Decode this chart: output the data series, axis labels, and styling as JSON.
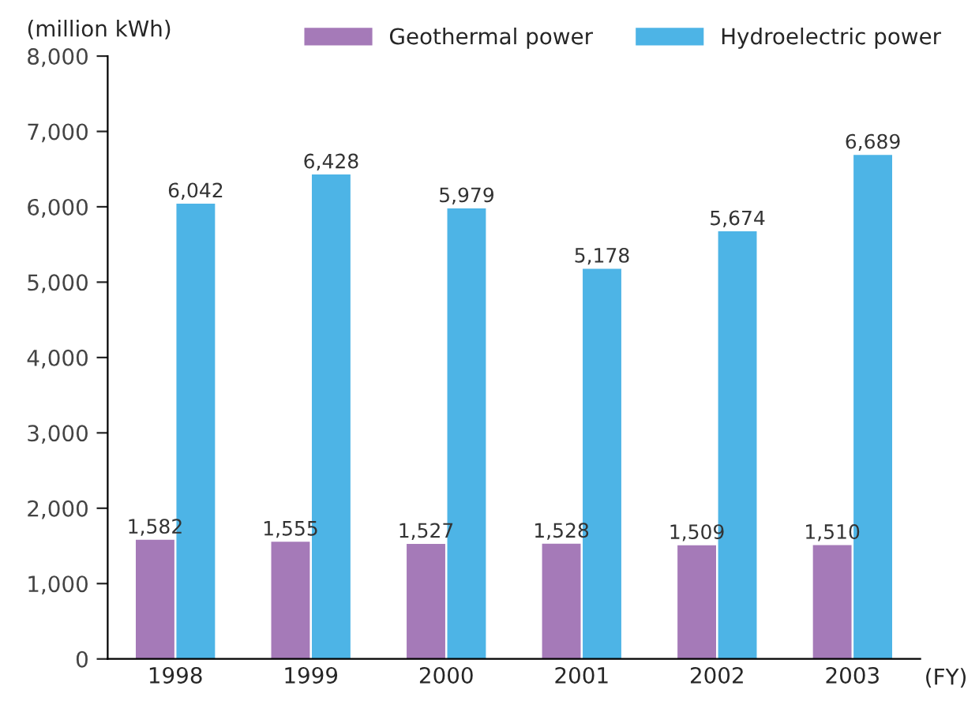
{
  "chart_data": {
    "type": "bar",
    "ylabel": "(million kWh)",
    "xlabel": "(FY)",
    "categories": [
      "1998",
      "1999",
      "2000",
      "2001",
      "2002",
      "2003"
    ],
    "series": [
      {
        "name": "Geothermal power",
        "color": "#a57ab8",
        "values": [
          1582,
          1555,
          1527,
          1528,
          1509,
          1510
        ],
        "value_labels": [
          "1,582",
          "1,555",
          "1,527",
          "1,528",
          "1,509",
          "1,510"
        ]
      },
      {
        "name": "Hydroelectric power",
        "color": "#4db4e6",
        "values": [
          6042,
          6428,
          5979,
          5178,
          5674,
          6689
        ],
        "value_labels": [
          "6,042",
          "6,428",
          "5,979",
          "5,178",
          "5,674",
          "6,689"
        ]
      }
    ],
    "ylim": [
      0,
      8000
    ],
    "yticks": [
      {
        "value": 0,
        "label": "0"
      },
      {
        "value": 1000,
        "label": "1,000"
      },
      {
        "value": 2000,
        "label": "2,000"
      },
      {
        "value": 3000,
        "label": "3,000"
      },
      {
        "value": 4000,
        "label": "4,000"
      },
      {
        "value": 5000,
        "label": "5,000"
      },
      {
        "value": 6000,
        "label": "6,000"
      },
      {
        "value": 7000,
        "label": "7,000"
      },
      {
        "value": 8000,
        "label": "8,000"
      }
    ],
    "grid": false,
    "legend": "top right"
  }
}
